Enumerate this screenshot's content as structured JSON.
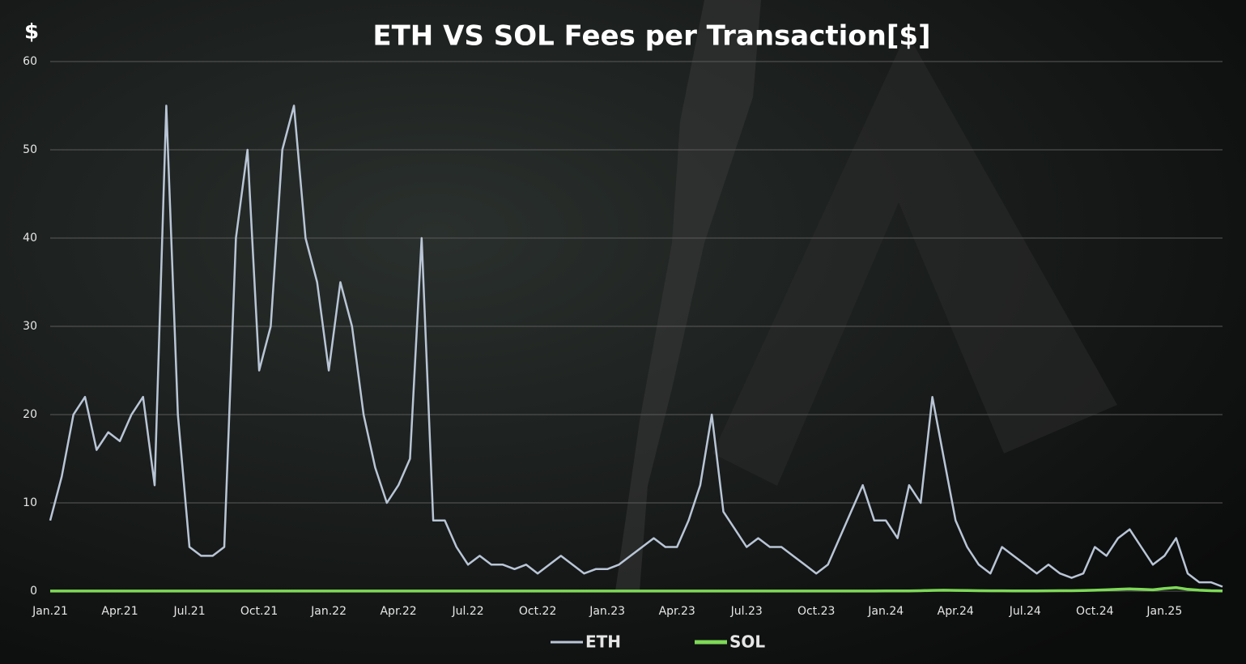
{
  "chart_data": {
    "type": "line",
    "title": "ETH VS SOL Fees per Transaction[$]",
    "y_label": "$",
    "categories": [
      "Jan.21",
      null,
      null,
      null,
      null,
      null,
      "Apr.21",
      null,
      null,
      null,
      null,
      null,
      "Jul.21",
      null,
      null,
      null,
      null,
      null,
      "Oct.21",
      null,
      null,
      null,
      null,
      null,
      "Jan.22",
      null,
      null,
      null,
      null,
      null,
      "Apr.22",
      null,
      null,
      null,
      null,
      null,
      "Jul.22",
      null,
      null,
      null,
      null,
      null,
      "Oct.22",
      null,
      null,
      null,
      null,
      null,
      "Jan.23",
      null,
      null,
      null,
      null,
      null,
      "Apr.23",
      null,
      null,
      null,
      null,
      null,
      "Jul.23",
      null,
      null,
      null,
      null,
      null,
      "Oct.23",
      null,
      null,
      null,
      null,
      null,
      "Jan.24",
      null,
      null,
      null,
      null,
      null,
      "Apr.24",
      null,
      null,
      null,
      null,
      null,
      "Jul.24",
      null,
      null,
      null,
      null,
      null,
      "Oct.24",
      null,
      null,
      null,
      null,
      null,
      "Jan.25",
      null,
      null,
      null,
      null,
      null
    ],
    "series": [
      {
        "name": "ETH",
        "color": "#b9c5d6",
        "values": [
          8,
          13,
          20,
          22,
          16,
          18,
          17,
          20,
          22,
          12,
          55,
          20,
          5,
          4,
          4,
          5,
          40,
          50,
          25,
          30,
          50,
          55,
          40,
          35,
          25,
          35,
          30,
          20,
          14,
          10,
          12,
          15,
          40,
          8,
          8,
          5,
          3,
          4,
          3,
          3,
          2.5,
          3,
          2,
          3,
          4,
          3,
          2,
          2.5,
          2.5,
          3,
          4,
          5,
          6,
          5,
          5,
          8,
          12,
          20,
          9,
          7,
          5,
          6,
          5,
          5,
          4,
          3,
          2,
          3,
          6,
          9,
          12,
          8,
          8,
          6,
          12,
          10,
          22,
          15,
          8,
          5,
          3,
          2,
          5,
          4,
          3,
          2,
          3,
          2,
          1.5,
          2,
          5,
          4,
          6,
          7,
          5,
          3,
          4,
          6,
          2,
          1,
          1,
          0.5
        ]
      },
      {
        "name": "SOL",
        "color": "#7ed957",
        "values": [
          0.01,
          0.01,
          0.01,
          0.01,
          0.01,
          0.01,
          0.01,
          0.01,
          0.01,
          0.01,
          0.01,
          0.01,
          0.01,
          0.01,
          0.01,
          0.01,
          0.01,
          0.01,
          0.01,
          0.01,
          0.01,
          0.01,
          0.01,
          0.01,
          0.01,
          0.01,
          0.01,
          0.01,
          0.01,
          0.01,
          0.01,
          0.01,
          0.01,
          0.01,
          0.01,
          0.01,
          0.01,
          0.01,
          0.01,
          0.01,
          0.01,
          0.01,
          0.01,
          0.01,
          0.01,
          0.01,
          0.01,
          0.01,
          0.01,
          0.01,
          0.01,
          0.01,
          0.01,
          0.01,
          0.01,
          0.01,
          0.01,
          0.01,
          0.01,
          0.01,
          0.01,
          0.01,
          0.01,
          0.01,
          0.01,
          0.01,
          0.01,
          0.01,
          0.01,
          0.01,
          0.01,
          0.01,
          0.02,
          0.02,
          0.03,
          0.05,
          0.08,
          0.1,
          0.08,
          0.06,
          0.05,
          0.04,
          0.04,
          0.03,
          0.03,
          0.03,
          0.04,
          0.05,
          0.05,
          0.06,
          0.1,
          0.15,
          0.2,
          0.25,
          0.2,
          0.15,
          0.3,
          0.4,
          0.2,
          0.1,
          0.05,
          0.03
        ]
      }
    ],
    "ylim": [
      0,
      60
    ],
    "yticks": [
      0,
      10,
      20,
      30,
      40,
      50,
      60
    ],
    "grid": true
  }
}
